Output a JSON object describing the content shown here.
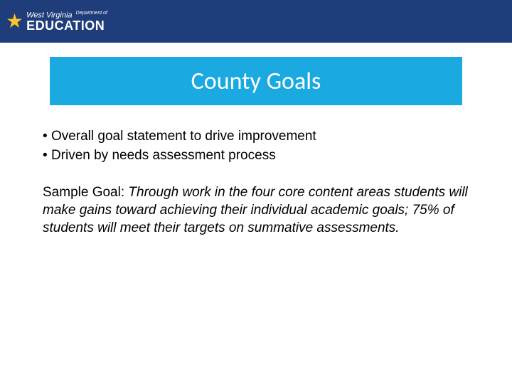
{
  "header": {
    "logo_top": "West Virginia",
    "logo_dept": "Department of",
    "logo_bottom": "EDUCATION"
  },
  "title": "County Goals",
  "bullets": [
    "Overall goal statement to drive improvement",
    "Driven by needs assessment process"
  ],
  "sample_label": "Sample Goal:",
  "sample_text": "Through work in the four core content areas students will make gains toward achieving their individual academic goals; 75% of students will meet their targets on summative assessments.",
  "colors": {
    "header_bg": "#1f3d7a",
    "banner_bg": "#1ba9e1",
    "star": "#f5c430",
    "text": "#000000",
    "title_text": "#ffffff"
  }
}
